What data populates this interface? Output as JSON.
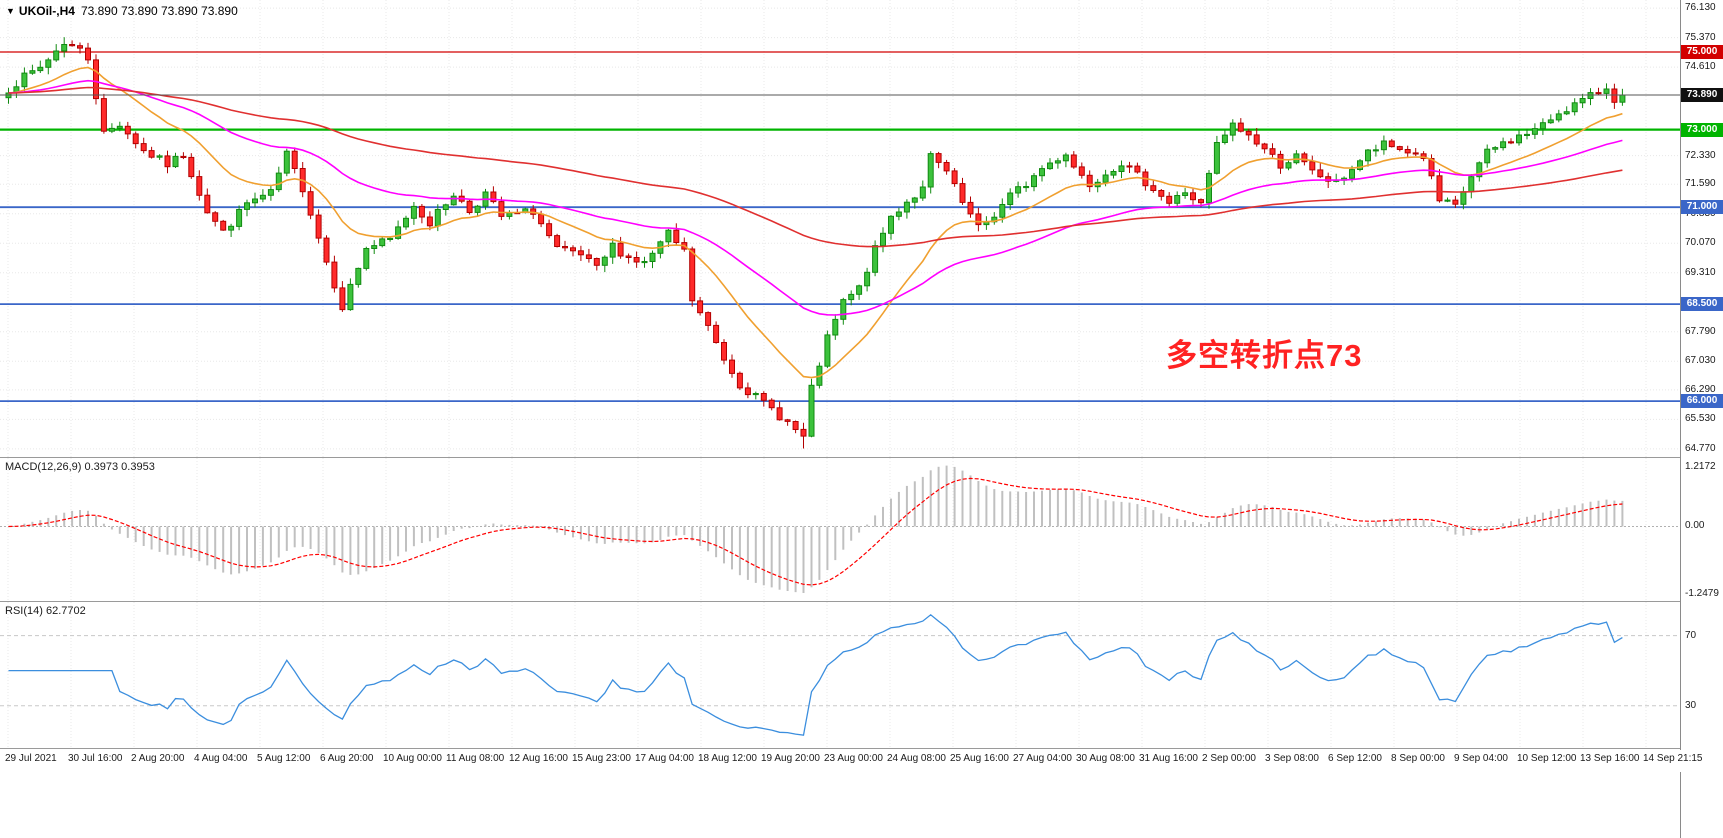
{
  "header": {
    "collapse_icon": "▼",
    "symbol": "UKOil-,H4",
    "ohlc": "73.890 73.890 73.890 73.890"
  },
  "annotation": {
    "text": "多空转折点73",
    "color": "#FF2222"
  },
  "chart_data": {
    "type": "candlestick",
    "symbol": "UKOil-",
    "timeframe": "H4",
    "open": "73.890",
    "high": "73.890",
    "low": "73.890",
    "close": "73.890",
    "bars": 204,
    "seed": 7,
    "price_axis": {
      "view_max": 76.34,
      "view_min": 64.56,
      "ticks": [
        76.13,
        75.37,
        74.61,
        72.33,
        71.59,
        70.83,
        70.07,
        69.31,
        67.79,
        67.03,
        66.29,
        65.53,
        64.77
      ]
    },
    "extremes": {
      "high_bar": 7,
      "high": 75.38,
      "low_bar": 100,
      "low": 64.78
    },
    "close_anchors": [
      [
        0,
        74.05
      ],
      [
        2,
        74.35
      ],
      [
        4,
        74.6
      ],
      [
        7,
        75.25
      ],
      [
        9,
        75.05
      ],
      [
        10,
        74.85
      ],
      [
        12,
        72.9
      ],
      [
        14,
        73.15
      ],
      [
        17,
        72.45
      ],
      [
        20,
        72.1
      ],
      [
        22,
        72.35
      ],
      [
        25,
        70.9
      ],
      [
        27,
        70.35
      ],
      [
        30,
        71.1
      ],
      [
        33,
        71.35
      ],
      [
        35,
        72.35
      ],
      [
        37,
        71.5
      ],
      [
        40,
        69.6
      ],
      [
        42,
        68.45
      ],
      [
        45,
        69.95
      ],
      [
        48,
        70.15
      ],
      [
        51,
        71.05
      ],
      [
        53,
        70.6
      ],
      [
        56,
        71.35
      ],
      [
        58,
        70.9
      ],
      [
        60,
        71.35
      ],
      [
        62,
        70.75
      ],
      [
        66,
        70.9
      ],
      [
        69,
        69.9
      ],
      [
        72,
        69.75
      ],
      [
        74,
        69.4
      ],
      [
        76,
        70.0
      ],
      [
        78,
        69.7
      ],
      [
        80,
        69.55
      ],
      [
        83,
        70.3
      ],
      [
        85,
        69.85
      ],
      [
        86,
        68.6
      ],
      [
        88,
        67.9
      ],
      [
        90,
        67.1
      ],
      [
        92,
        66.45
      ],
      [
        94,
        66.1
      ],
      [
        96,
        65.8
      ],
      [
        98,
        65.45
      ],
      [
        100,
        65.05
      ],
      [
        101,
        66.3
      ],
      [
        103,
        67.6
      ],
      [
        105,
        68.55
      ],
      [
        107,
        68.9
      ],
      [
        109,
        69.9
      ],
      [
        111,
        70.75
      ],
      [
        113,
        71.15
      ],
      [
        115,
        71.45
      ],
      [
        116,
        72.3
      ],
      [
        118,
        71.9
      ],
      [
        120,
        71.1
      ],
      [
        122,
        70.45
      ],
      [
        124,
        70.8
      ],
      [
        126,
        71.3
      ],
      [
        128,
        71.6
      ],
      [
        130,
        72.0
      ],
      [
        133,
        72.4
      ],
      [
        134,
        72.05
      ],
      [
        136,
        71.6
      ],
      [
        138,
        71.9
      ],
      [
        140,
        72.15
      ],
      [
        142,
        71.8
      ],
      [
        144,
        71.5
      ],
      [
        146,
        71.1
      ],
      [
        148,
        71.4
      ],
      [
        150,
        71.05
      ],
      [
        152,
        72.6
      ],
      [
        154,
        73.1
      ],
      [
        156,
        72.85
      ],
      [
        158,
        72.5
      ],
      [
        160,
        72.1
      ],
      [
        162,
        72.3
      ],
      [
        164,
        71.9
      ],
      [
        167,
        71.6
      ],
      [
        169,
        72.0
      ],
      [
        171,
        72.4
      ],
      [
        173,
        72.6
      ],
      [
        175,
        72.5
      ],
      [
        178,
        72.3
      ],
      [
        180,
        71.15
      ],
      [
        182,
        71.0
      ],
      [
        184,
        71.8
      ],
      [
        186,
        72.4
      ],
      [
        188,
        72.65
      ],
      [
        191,
        72.9
      ],
      [
        193,
        73.1
      ],
      [
        195,
        73.45
      ],
      [
        197,
        73.65
      ],
      [
        199,
        73.85
      ],
      [
        201,
        74.1
      ],
      [
        202,
        73.8
      ],
      [
        203,
        73.89
      ]
    ],
    "hlines": [
      {
        "price": 75.0,
        "label": "75.000",
        "color": "#D20000",
        "stroke_w": 1.3
      },
      {
        "price": 73.0,
        "label": "73.000",
        "color": "#00B400",
        "stroke_w": 2.2
      },
      {
        "price": 71.0,
        "label": "71.000",
        "color": "#3A66C8",
        "stroke_w": 1.8
      },
      {
        "price": 68.5,
        "label": "68.500",
        "color": "#3A66C8",
        "stroke_w": 1.8
      },
      {
        "price": 66.0,
        "label": "66.000",
        "color": "#3A66C8",
        "stroke_w": 1.8
      }
    ],
    "bid": {
      "price": 73.89,
      "label": "73.890",
      "badge_bg": "#101010",
      "line_color": "#555555"
    },
    "moving_averages": [
      {
        "name": "ma-fast",
        "period": 16,
        "color": "#F0A030"
      },
      {
        "name": "ma-mid",
        "period": 44,
        "color": "#FF00FF"
      },
      {
        "name": "ma-slow",
        "period": 110,
        "color": "#E03030"
      }
    ],
    "candle_colors": {
      "up_fill": "#3CC23C",
      "up_stroke": "#118A11",
      "down_fill": "#FF2A2A",
      "down_stroke": "#B20000"
    },
    "time_labels": [
      "29 Jul 2021",
      "30 Jul 16:00",
      "2 Aug 20:00",
      "4 Aug 04:00",
      "5 Aug 12:00",
      "6 Aug 20:00",
      "10 Aug 00:00",
      "11 Aug 08:00",
      "12 Aug 16:00",
      "15 Aug 23:00",
      "17 Aug 04:00",
      "18 Aug 12:00",
      "19 Aug 20:00",
      "23 Aug 00:00",
      "24 Aug 08:00",
      "25 Aug 16:00",
      "27 Aug 04:00",
      "30 Aug 08:00",
      "31 Aug 16:00",
      "2 Sep 00:00",
      "3 Sep 08:00",
      "6 Sep 12:00",
      "8 Sep 00:00",
      "9 Sep 04:00",
      "10 Sep 12:00",
      "13 Sep 16:00",
      "14 Sep 21:15"
    ],
    "indicators": [
      {
        "type": "macd",
        "label": "MACD(12,26,9) 0.3973 0.3953",
        "fast": 12,
        "slow": 26,
        "signal": 9,
        "value": 0.3973,
        "signal_value": 0.3953,
        "axis_max": "1.2172",
        "axis_zero": "0.00",
        "axis_min": "-1.2479",
        "histogram_color": "#C0C0C0",
        "signal_color": "#FF0000"
      },
      {
        "type": "rsi",
        "label": "RSI(14) 62.7702",
        "period": 14,
        "value": 62.7702,
        "levels": [
          "70",
          "30"
        ],
        "line_color": "#3B8EDE",
        "level_color": "#C8C8C8"
      }
    ]
  }
}
